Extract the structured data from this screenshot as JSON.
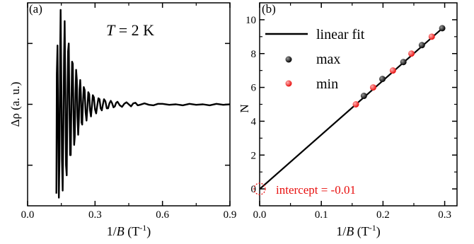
{
  "chart_data": [
    {
      "type": "line",
      "panel_label": "(a)",
      "annotation": {
        "prefix": "T",
        "value": " = 2 K"
      },
      "xlabel": {
        "base": "1/",
        "var": "B",
        "unit": " (T",
        "exp": "-1",
        "close": ")"
      },
      "ylabel": "Δρ (a. u.)",
      "xlim": [
        0.0,
        0.9
      ],
      "ylim": [
        -1.0,
        1.0
      ],
      "xticks": [
        0.0,
        0.3,
        0.6,
        0.9
      ],
      "xtick_labels": [
        "0.0",
        "0.3",
        "0.6",
        "0.9"
      ],
      "yticks": [
        -0.6,
        0.0,
        0.6
      ],
      "ytick_labels": [],
      "grid": false,
      "series": [
        {
          "x": [
            0.128,
            0.13,
            0.133,
            0.136,
            0.139,
            0.142,
            0.145,
            0.147,
            0.15,
            0.153,
            0.156,
            0.159,
            0.162,
            0.165,
            0.168,
            0.171,
            0.174,
            0.177,
            0.18,
            0.183,
            0.186,
            0.189,
            0.192,
            0.195,
            0.198,
            0.201,
            0.204,
            0.207,
            0.21,
            0.213,
            0.216,
            0.219,
            0.222,
            0.225,
            0.228,
            0.231,
            0.234,
            0.237,
            0.24,
            0.243,
            0.246,
            0.25,
            0.254,
            0.258,
            0.262,
            0.266,
            0.27,
            0.274,
            0.278,
            0.282,
            0.286,
            0.29,
            0.295,
            0.3,
            0.305,
            0.31,
            0.315,
            0.32,
            0.325,
            0.33,
            0.335,
            0.34,
            0.346,
            0.352,
            0.358,
            0.364,
            0.37,
            0.376,
            0.382,
            0.388,
            0.394,
            0.4,
            0.41,
            0.42,
            0.43,
            0.44,
            0.45,
            0.46,
            0.47,
            0.48,
            0.49,
            0.5,
            0.52,
            0.54,
            0.56,
            0.58,
            0.6,
            0.63,
            0.66,
            0.69,
            0.72,
            0.75,
            0.78,
            0.81,
            0.84,
            0.87,
            0.9
          ],
          "y": [
            -0.88,
            0.3,
            0.58,
            -0.2,
            -0.92,
            -0.5,
            0.55,
            0.93,
            0.2,
            -0.55,
            -0.85,
            -0.3,
            0.45,
            0.82,
            0.15,
            -0.6,
            -0.7,
            -0.05,
            0.52,
            0.6,
            0.0,
            -0.5,
            -0.5,
            0.05,
            0.42,
            0.4,
            -0.05,
            -0.4,
            -0.32,
            0.1,
            0.34,
            0.24,
            -0.12,
            -0.3,
            -0.15,
            0.15,
            0.24,
            0.1,
            -0.18,
            -0.2,
            0.0,
            0.17,
            0.14,
            -0.08,
            -0.16,
            -0.04,
            0.12,
            0.1,
            -0.06,
            -0.12,
            -0.02,
            0.09,
            0.07,
            -0.05,
            -0.09,
            -0.01,
            0.06,
            0.05,
            -0.04,
            -0.06,
            0.0,
            0.05,
            0.03,
            -0.04,
            -0.04,
            0.01,
            0.035,
            0.01,
            -0.03,
            -0.02,
            0.015,
            0.025,
            -0.01,
            -0.025,
            0.005,
            0.02,
            0.0,
            -0.02,
            0.01,
            0.015,
            -0.01,
            -0.005,
            0.01,
            -0.005,
            -0.01,
            0.005,
            0.005,
            -0.005,
            0.0,
            -0.01,
            0.005,
            -0.005,
            0.0,
            -0.01,
            0.005,
            -0.005,
            0.0
          ]
        }
      ]
    },
    {
      "type": "scatter",
      "panel_label": "(b)",
      "xlabel": {
        "base": "1/",
        "var": "B",
        "unit": " (T",
        "exp": "-1",
        "close": ")"
      },
      "ylabel": "N",
      "xlim": [
        0.0,
        0.32
      ],
      "ylim": [
        -1.0,
        11.0
      ],
      "xticks": [
        0.0,
        0.1,
        0.2,
        0.3
      ],
      "xtick_labels": [
        "0.0",
        "0.1",
        "0.2",
        "0.3"
      ],
      "yticks": [
        0,
        2,
        4,
        6,
        8,
        10
      ],
      "ytick_labels": [
        "0",
        "2",
        "4",
        "6",
        "8",
        "10"
      ],
      "grid": false,
      "legend_position": "top-left",
      "fit": {
        "name": "linear fit",
        "x": [
          0.0,
          0.298
        ],
        "y": [
          -0.01,
          9.55
        ],
        "color": "#000000"
      },
      "series": [
        {
          "name": "max",
          "color": "#000000",
          "x": [
            0.169,
            0.199,
            0.233,
            0.263,
            0.296
          ],
          "y": [
            5.5,
            6.5,
            7.5,
            8.5,
            9.5
          ]
        },
        {
          "name": "min",
          "color": "#e8100f",
          "x": [
            0.156,
            0.184,
            0.216,
            0.246,
            0.279
          ],
          "y": [
            5.0,
            6.0,
            7.0,
            8.0,
            9.0
          ]
        }
      ],
      "annotation": {
        "text": "intercept = -0.01",
        "color": "#e8100f",
        "x": 0.0,
        "y": 0.0
      }
    }
  ]
}
